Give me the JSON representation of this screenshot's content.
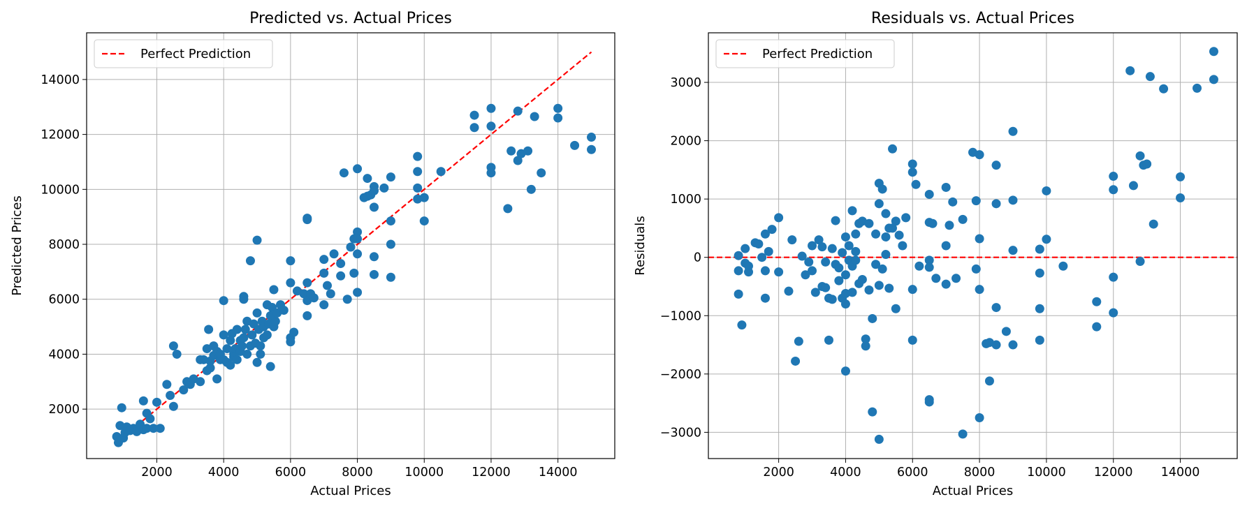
{
  "chart_data": [
    {
      "type": "scatter",
      "title": "Predicted vs. Actual Prices",
      "xlabel": "Actual Prices",
      "ylabel": "Predicted Prices",
      "xlim": [
        -100,
        15700
      ],
      "ylim": [
        200,
        15700
      ],
      "xticks": [
        2000,
        4000,
        6000,
        8000,
        10000,
        12000,
        14000
      ],
      "yticks": [
        2000,
        4000,
        6000,
        8000,
        10000,
        12000,
        14000
      ],
      "grid": true,
      "legend_position": "upper-left",
      "legend": [
        "Perfect Prediction"
      ],
      "point_color": "#1f77b4",
      "line_color": "#ff0000",
      "reference_line": {
        "label": "Perfect Prediction",
        "x": [
          800,
          15000
        ],
        "y": [
          800,
          15000
        ]
      },
      "points": [
        [
          800,
          1000
        ],
        [
          850,
          780
        ],
        [
          900,
          1400
        ],
        [
          950,
          2050
        ],
        [
          1000,
          950
        ],
        [
          1050,
          1150
        ],
        [
          1100,
          1350
        ],
        [
          1200,
          1220
        ],
        [
          1300,
          1300
        ],
        [
          1400,
          1180
        ],
        [
          1500,
          1450
        ],
        [
          1600,
          1250
        ],
        [
          1600,
          2300
        ],
        [
          1700,
          1850
        ],
        [
          1700,
          1300
        ],
        [
          1800,
          1650
        ],
        [
          1900,
          1300
        ],
        [
          2000,
          2250
        ],
        [
          2100,
          1300
        ],
        [
          2300,
          2900
        ],
        [
          2400,
          2500
        ],
        [
          2500,
          2100
        ],
        [
          2500,
          4300
        ],
        [
          2600,
          4000
        ],
        [
          2800,
          2700
        ],
        [
          2900,
          3000
        ],
        [
          3000,
          2900
        ],
        [
          3100,
          3100
        ],
        [
          3300,
          3800
        ],
        [
          3300,
          3000
        ],
        [
          3400,
          3800
        ],
        [
          3500,
          3400
        ],
        [
          3500,
          4200
        ],
        [
          3550,
          4900
        ],
        [
          3600,
          3500
        ],
        [
          3600,
          3750
        ],
        [
          3700,
          4300
        ],
        [
          3700,
          3950
        ],
        [
          3800,
          4100
        ],
        [
          3800,
          3100
        ],
        [
          3900,
          3800
        ],
        [
          3900,
          4000
        ],
        [
          4000,
          4700
        ],
        [
          4000,
          3800
        ],
        [
          4000,
          5950
        ],
        [
          4100,
          4200
        ],
        [
          4100,
          3700
        ],
        [
          4200,
          3600
        ],
        [
          4200,
          4500
        ],
        [
          4250,
          4750
        ],
        [
          4300,
          3900
        ],
        [
          4300,
          4000
        ],
        [
          4350,
          4200
        ],
        [
          4400,
          4900
        ],
        [
          4400,
          3800
        ],
        [
          4500,
          4500
        ],
        [
          4500,
          4100
        ],
        [
          4550,
          4300
        ],
        [
          4600,
          6100
        ],
        [
          4600,
          6000
        ],
        [
          4600,
          4600
        ],
        [
          4650,
          4900
        ],
        [
          4700,
          5200
        ],
        [
          4700,
          4000
        ],
        [
          4800,
          4300
        ],
        [
          4800,
          7400
        ],
        [
          4850,
          4700
        ],
        [
          4900,
          5100
        ],
        [
          4950,
          4400
        ],
        [
          5000,
          8150
        ],
        [
          5000,
          5500
        ],
        [
          5000,
          3700
        ],
        [
          5050,
          4900
        ],
        [
          5100,
          4300
        ],
        [
          5100,
          4000
        ],
        [
          5150,
          5200
        ],
        [
          5200,
          5000
        ],
        [
          5200,
          4600
        ],
        [
          5300,
          5800
        ],
        [
          5300,
          4700
        ],
        [
          5350,
          5100
        ],
        [
          5400,
          3550
        ],
        [
          5400,
          5400
        ],
        [
          5450,
          5700
        ],
        [
          5500,
          6350
        ],
        [
          5500,
          5000
        ],
        [
          5550,
          5200
        ],
        [
          5600,
          5500
        ],
        [
          5700,
          5800
        ],
        [
          5800,
          5600
        ],
        [
          6000,
          6600
        ],
        [
          6000,
          7400
        ],
        [
          6000,
          4450
        ],
        [
          6000,
          4600
        ],
        [
          6100,
          4800
        ],
        [
          6200,
          6300
        ],
        [
          6400,
          6200
        ],
        [
          6500,
          8950
        ],
        [
          6500,
          8900
        ],
        [
          6500,
          6600
        ],
        [
          6500,
          5950
        ],
        [
          6500,
          5400
        ],
        [
          6600,
          6200
        ],
        [
          6700,
          6050
        ],
        [
          7000,
          7450
        ],
        [
          7000,
          6950
        ],
        [
          7000,
          5800
        ],
        [
          7100,
          6500
        ],
        [
          7200,
          6200
        ],
        [
          7300,
          7650
        ],
        [
          7500,
          7300
        ],
        [
          7500,
          6850
        ],
        [
          7600,
          10600
        ],
        [
          7700,
          6000
        ],
        [
          7800,
          7900
        ],
        [
          7900,
          8200
        ],
        [
          7900,
          6950
        ],
        [
          8000,
          10750
        ],
        [
          8000,
          8450
        ],
        [
          8000,
          8200
        ],
        [
          8000,
          6250
        ],
        [
          8000,
          7650
        ],
        [
          8200,
          9700
        ],
        [
          8300,
          9750
        ],
        [
          8300,
          10400
        ],
        [
          8400,
          9800
        ],
        [
          8500,
          10100
        ],
        [
          8500,
          9950
        ],
        [
          8500,
          9350
        ],
        [
          8500,
          7550
        ],
        [
          8500,
          6900
        ],
        [
          8800,
          10050
        ],
        [
          9000,
          10450
        ],
        [
          9000,
          8850
        ],
        [
          9000,
          8000
        ],
        [
          9000,
          6800
        ],
        [
          9800,
          11200
        ],
        [
          9800,
          10650
        ],
        [
          9800,
          10050
        ],
        [
          9800,
          9650
        ],
        [
          10000,
          9700
        ],
        [
          10000,
          8850
        ],
        [
          10500,
          10650
        ],
        [
          11500,
          12700
        ],
        [
          11500,
          12250
        ],
        [
          12000,
          12950
        ],
        [
          12000,
          12300
        ],
        [
          12000,
          10800
        ],
        [
          12000,
          10600
        ],
        [
          12500,
          9300
        ],
        [
          12600,
          11400
        ],
        [
          12800,
          11050
        ],
        [
          12800,
          12850
        ],
        [
          12900,
          11300
        ],
        [
          13100,
          11400
        ],
        [
          13200,
          10000
        ],
        [
          13300,
          12650
        ],
        [
          13500,
          10600
        ],
        [
          14000,
          12950
        ],
        [
          14000,
          12600
        ],
        [
          14500,
          11600
        ],
        [
          15000,
          11900
        ],
        [
          15000,
          11450
        ]
      ]
    },
    {
      "type": "scatter",
      "title": "Residuals vs. Actual Prices",
      "xlabel": "Actual Prices",
      "ylabel": "Residuals",
      "xlim": [
        -100,
        15700
      ],
      "ylim": [
        -3450,
        3850
      ],
      "xticks": [
        2000,
        4000,
        6000,
        8000,
        10000,
        12000,
        14000
      ],
      "yticks": [
        -3000,
        -2000,
        -1000,
        0,
        1000,
        2000,
        3000
      ],
      "grid": true,
      "legend_position": "upper-left",
      "legend": [
        "Perfect Prediction"
      ],
      "point_color": "#1f77b4",
      "line_color": "#ff0000",
      "reference_line": {
        "label": "Perfect Prediction",
        "y": 0
      },
      "points": [
        [
          800,
          30
        ],
        [
          800,
          -230
        ],
        [
          800,
          -630
        ],
        [
          900,
          -1160
        ],
        [
          1000,
          -100
        ],
        [
          1000,
          150
        ],
        [
          1100,
          -250
        ],
        [
          1100,
          -150
        ],
        [
          1300,
          250
        ],
        [
          1400,
          230
        ],
        [
          1500,
          0
        ],
        [
          1600,
          -700
        ],
        [
          1600,
          -230
        ],
        [
          1600,
          400
        ],
        [
          1700,
          100
        ],
        [
          1800,
          480
        ],
        [
          2000,
          680
        ],
        [
          2000,
          -250
        ],
        [
          2300,
          -580
        ],
        [
          2400,
          300
        ],
        [
          2500,
          -1780
        ],
        [
          2600,
          -1440
        ],
        [
          2700,
          20
        ],
        [
          2800,
          -300
        ],
        [
          2900,
          -80
        ],
        [
          3000,
          200
        ],
        [
          3000,
          -230
        ],
        [
          3100,
          -600
        ],
        [
          3200,
          300
        ],
        [
          3300,
          180
        ],
        [
          3300,
          -500
        ],
        [
          3400,
          -80
        ],
        [
          3400,
          -520
        ],
        [
          3500,
          -700
        ],
        [
          3500,
          -1420
        ],
        [
          3600,
          150
        ],
        [
          3600,
          -720
        ],
        [
          3700,
          630
        ],
        [
          3700,
          -120
        ],
        [
          3800,
          -400
        ],
        [
          3800,
          -180
        ],
        [
          3900,
          -700
        ],
        [
          3900,
          80
        ],
        [
          4000,
          -1950
        ],
        [
          4000,
          -800
        ],
        [
          4000,
          350
        ],
        [
          4000,
          -620
        ],
        [
          4000,
          -300
        ],
        [
          4100,
          200
        ],
        [
          4100,
          -50
        ],
        [
          4200,
          800
        ],
        [
          4200,
          -600
        ],
        [
          4200,
          -150
        ],
        [
          4300,
          400
        ],
        [
          4300,
          -50
        ],
        [
          4300,
          100
        ],
        [
          4400,
          580
        ],
        [
          4400,
          -450
        ],
        [
          4500,
          -380
        ],
        [
          4500,
          620
        ],
        [
          4600,
          -1520
        ],
        [
          4600,
          -1400
        ],
        [
          4700,
          580
        ],
        [
          4700,
          -560
        ],
        [
          4800,
          -2650
        ],
        [
          4800,
          -1050
        ],
        [
          4900,
          400
        ],
        [
          4900,
          -120
        ],
        [
          5000,
          1270
        ],
        [
          5000,
          -3120
        ],
        [
          5000,
          -480
        ],
        [
          5000,
          920
        ],
        [
          5100,
          1170
        ],
        [
          5100,
          -200
        ],
        [
          5200,
          750
        ],
        [
          5200,
          350
        ],
        [
          5200,
          50
        ],
        [
          5300,
          500
        ],
        [
          5300,
          -530
        ],
        [
          5400,
          1860
        ],
        [
          5400,
          500
        ],
        [
          5500,
          -880
        ],
        [
          5500,
          620
        ],
        [
          5600,
          380
        ],
        [
          5700,
          200
        ],
        [
          5800,
          680
        ],
        [
          6000,
          1600
        ],
        [
          6000,
          1460
        ],
        [
          6000,
          -1420
        ],
        [
          6000,
          -550
        ],
        [
          6100,
          1250
        ],
        [
          6200,
          -150
        ],
        [
          6500,
          1080
        ],
        [
          6500,
          -2480
        ],
        [
          6500,
          -2440
        ],
        [
          6500,
          600
        ],
        [
          6500,
          -50
        ],
        [
          6500,
          -170
        ],
        [
          6600,
          580
        ],
        [
          6700,
          -360
        ],
        [
          7000,
          1200
        ],
        [
          7000,
          -460
        ],
        [
          7000,
          200
        ],
        [
          7100,
          550
        ],
        [
          7200,
          950
        ],
        [
          7300,
          -360
        ],
        [
          7500,
          -3030
        ],
        [
          7500,
          650
        ],
        [
          7800,
          1800
        ],
        [
          7900,
          -200
        ],
        [
          7900,
          970
        ],
        [
          8000,
          1760
        ],
        [
          8000,
          -2750
        ],
        [
          8000,
          -550
        ],
        [
          8000,
          320
        ],
        [
          8200,
          -1480
        ],
        [
          8300,
          -2120
        ],
        [
          8300,
          -1460
        ],
        [
          8500,
          -1500
        ],
        [
          8500,
          1580
        ],
        [
          8500,
          920
        ],
        [
          8500,
          -860
        ],
        [
          8800,
          -1270
        ],
        [
          9000,
          2160
        ],
        [
          9000,
          -1500
        ],
        [
          9000,
          980
        ],
        [
          9000,
          120
        ],
        [
          9800,
          -1420
        ],
        [
          9800,
          -880
        ],
        [
          9800,
          -270
        ],
        [
          9800,
          140
        ],
        [
          10000,
          1140
        ],
        [
          10000,
          310
        ],
        [
          10500,
          -150
        ],
        [
          11500,
          -1190
        ],
        [
          11500,
          -760
        ],
        [
          12000,
          1390
        ],
        [
          12000,
          1160
        ],
        [
          12000,
          -340
        ],
        [
          12000,
          -950
        ],
        [
          12500,
          3200
        ],
        [
          12600,
          1230
        ],
        [
          12800,
          1740
        ],
        [
          12800,
          -70
        ],
        [
          12900,
          1580
        ],
        [
          13000,
          1600
        ],
        [
          13100,
          3100
        ],
        [
          13200,
          570
        ],
        [
          13500,
          2890
        ],
        [
          14000,
          1380
        ],
        [
          14000,
          1020
        ],
        [
          14500,
          2900
        ],
        [
          15000,
          3530
        ],
        [
          15000,
          3050
        ]
      ]
    }
  ]
}
